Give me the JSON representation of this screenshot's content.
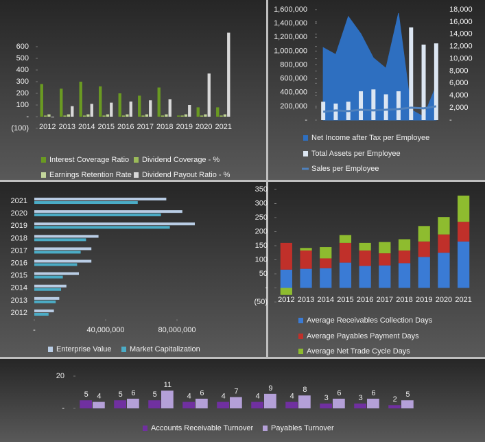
{
  "chart_data": [
    {
      "type": "bar",
      "categories": [
        "2012",
        "2013",
        "2014",
        "2015",
        "2016",
        "2017",
        "2018",
        "2019",
        "2020",
        "2021"
      ],
      "series": [
        {
          "name": "Interest Coverage Ratio",
          "color": "#6a9a22",
          "values": [
            280,
            240,
            300,
            260,
            200,
            180,
            250,
            10,
            80,
            80
          ]
        },
        {
          "name": "Dividend Coverage - %",
          "color": "#9bbb59",
          "values": [
            10,
            10,
            10,
            10,
            10,
            10,
            10,
            10,
            10,
            10
          ]
        },
        {
          "name": "Earnings Retention Rate",
          "color": "#c3d69b",
          "values": [
            20,
            20,
            20,
            20,
            20,
            20,
            20,
            20,
            20,
            20
          ]
        },
        {
          "name": "Dividend Payout Ratio - %",
          "color": "#d9d9d9",
          "values": [
            0,
            90,
            110,
            120,
            130,
            140,
            150,
            100,
            370,
            720
          ]
        }
      ],
      "ylim": [
        -100,
        700
      ],
      "yticks": [
        {
          "value": -100,
          "label": "(100)"
        },
        {
          "value": 0,
          "label": "-"
        },
        100,
        200,
        300,
        400,
        500,
        600
      ]
    },
    {
      "type": "combo",
      "categories": [
        null,
        null,
        null,
        null,
        null,
        null,
        null,
        null,
        null,
        null
      ],
      "series": [
        {
          "name": "Net Income after Tax per Employee",
          "type": "area",
          "color": "#2e6fc0",
          "values": [
            1050000,
            950000,
            1500000,
            1250000,
            900000,
            750000,
            1550000,
            150000,
            50000,
            500000
          ]
        },
        {
          "name": "Total Assets per Employee",
          "type": "bar",
          "axis": "y2",
          "color": "#dce6f2",
          "values": [
            3000,
            2700,
            3000,
            4700,
            5000,
            4200,
            4700,
            15100,
            12300,
            12500
          ]
        },
        {
          "name": "Sales per Employee",
          "type": "line",
          "color": "#4f81bd",
          "values": [
            120000,
            140000,
            130000,
            150000,
            140000,
            150000,
            160000,
            180000,
            170000,
            200000
          ]
        }
      ],
      "ylim": [
        0,
        1600000
      ],
      "yticks": [
        {
          "value": 0,
          "label": "-"
        },
        {
          "value": 200000,
          "label": "200,000"
        },
        {
          "value": 400000,
          "label": "400,000"
        },
        {
          "value": 600000,
          "label": "600,000"
        },
        {
          "value": 800000,
          "label": "800,000"
        },
        {
          "value": 1000000,
          "label": "1,000,000"
        },
        {
          "value": 1200000,
          "label": "1,200,000"
        },
        {
          "value": 1400000,
          "label": "1,400,000"
        },
        {
          "value": 1600000,
          "label": "1,600,000"
        }
      ],
      "y2lim": [
        0,
        18000
      ],
      "y2ticks": [
        {
          "value": 0,
          "label": "-"
        },
        {
          "value": 2000,
          "label": "2,000"
        },
        {
          "value": 4000,
          "label": "4,000"
        },
        {
          "value": 6000,
          "label": "6,000"
        },
        {
          "value": 8000,
          "label": "8,000"
        },
        {
          "value": 10000,
          "label": "10,000"
        },
        {
          "value": 12000,
          "label": "12,000"
        },
        {
          "value": 14000,
          "label": "14,000"
        },
        {
          "value": 16000,
          "label": "16,000"
        },
        {
          "value": 18000,
          "label": "18,000"
        }
      ]
    },
    {
      "type": "barh",
      "categories": [
        "2012",
        "2013",
        "2014",
        "2015",
        "2016",
        "2017",
        "2018",
        "2019",
        "2020",
        "2021"
      ],
      "series": [
        {
          "name": "Enterprise Value",
          "color": "#b9cde5",
          "values": [
            11000000,
            14000000,
            18000000,
            25000000,
            32000000,
            32000000,
            36000000,
            90000000,
            83000000,
            74000000
          ]
        },
        {
          "name": "Market Capitalization",
          "color": "#4bacc6",
          "values": [
            8000000,
            12000000,
            15000000,
            16000000,
            24000000,
            26000000,
            29000000,
            76000000,
            71000000,
            58000000
          ]
        }
      ],
      "xlim": [
        0,
        100000000
      ],
      "xticks": [
        {
          "value": 0,
          "label": "-"
        },
        {
          "value": 40000000,
          "label": "40,000,000"
        },
        {
          "value": 80000000,
          "label": "80,000,000"
        }
      ]
    },
    {
      "type": "stacked",
      "categories": [
        "2012",
        "2013",
        "2014",
        "2015",
        "2016",
        "2017",
        "2018",
        "2019",
        "2020",
        "2021"
      ],
      "series": [
        {
          "name": "Average Receivables Collection Days",
          "color": "#3a7bd5",
          "values": [
            65,
            68,
            70,
            90,
            78,
            80,
            88,
            110,
            125,
            165
          ]
        },
        {
          "name": "Average Payables Payment Days",
          "color": "#c0302a",
          "values": [
            95,
            65,
            35,
            70,
            55,
            43,
            45,
            55,
            65,
            70
          ]
        },
        {
          "name": "Average Net Trade Cycle Days",
          "color": "#8ebc2f",
          "values": [
            -25,
            9,
            40,
            28,
            27,
            40,
            40,
            55,
            62,
            93
          ]
        }
      ],
      "ylim": [
        -50,
        350
      ],
      "yticks": [
        {
          "value": -50,
          "label": "(50)"
        },
        {
          "value": 0,
          "label": "-"
        },
        50,
        100,
        150,
        200,
        250,
        300,
        350
      ]
    },
    {
      "type": "bar",
      "categories": [
        null,
        null,
        null,
        null,
        null,
        null,
        null,
        null,
        null,
        null
      ],
      "series": [
        {
          "name": "Accounts Receivable Turnover",
          "color": "#7030a0",
          "values": [
            5,
            5,
            5,
            4,
            4,
            4,
            4,
            3,
            3,
            2
          ]
        },
        {
          "name": "Payables Turnover",
          "color": "#b4a0d8",
          "values": [
            4,
            6,
            11,
            6,
            7,
            9,
            8,
            6,
            6,
            5
          ]
        }
      ],
      "value_labels_shown": true,
      "ylim": [
        0,
        20
      ],
      "yticks": [
        {
          "value": 0,
          "label": "-"
        },
        20
      ]
    }
  ]
}
